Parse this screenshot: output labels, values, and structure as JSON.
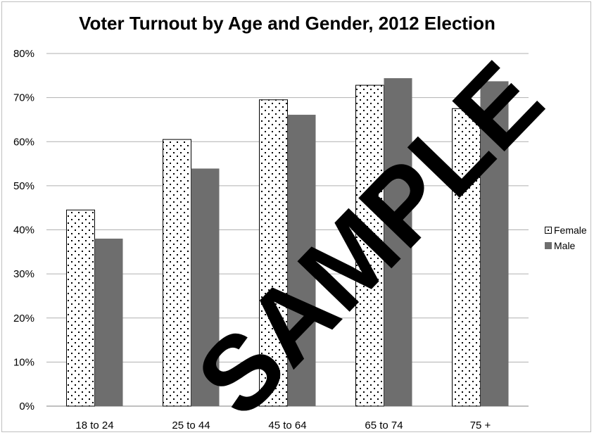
{
  "chart_data": {
    "type": "bar",
    "title": "Voter Turnout by Age and Gender, 2012 Election",
    "xlabel": "",
    "ylabel": "",
    "categories": [
      "18 to 24",
      "25 to 44",
      "45 to 64",
      "65 to 74",
      "75 +"
    ],
    "series": [
      {
        "name": "Female",
        "values": [
          44.5,
          60.5,
          69.5,
          72.8,
          67.5
        ]
      },
      {
        "name": "Male",
        "values": [
          38.0,
          53.9,
          66.1,
          74.4,
          73.7
        ]
      }
    ],
    "ylim": [
      0,
      80
    ],
    "yticks": [
      "0%",
      "10%",
      "20%",
      "30%",
      "40%",
      "50%",
      "60%",
      "70%",
      "80%"
    ],
    "grid": true,
    "legend": "right",
    "colors": {
      "female_fill": "#ffffff",
      "female_pattern": "dotted",
      "male_fill": "#6e6e6e",
      "gridline": "#b0b0b0"
    }
  },
  "watermark": {
    "text": "SAMPLE"
  }
}
